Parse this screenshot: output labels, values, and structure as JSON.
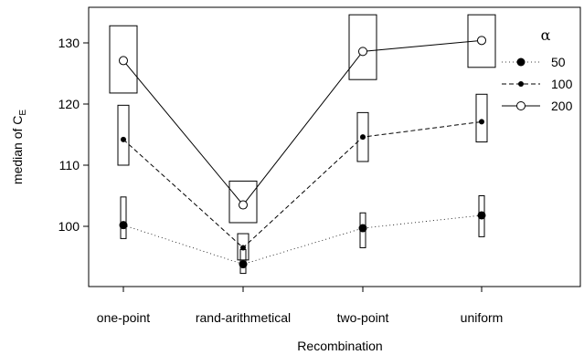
{
  "chart_data": {
    "type": "line",
    "xlabel": "Recombination",
    "ylabel_main": "median of C",
    "ylabel_subscript": "E",
    "categories": [
      "one-point",
      "rand-arithmetical",
      "two-point",
      "uniform"
    ],
    "ylim": [
      90,
      135
    ],
    "yticks": [
      100,
      110,
      120,
      130
    ],
    "legend_title": "α",
    "legend_position": "top-right",
    "series": [
      {
        "name": "50",
        "line_style": "dotted",
        "marker": "filled-large",
        "values": [
          100.2,
          93.8,
          99.7,
          101.8
        ],
        "ci_low": [
          98.0,
          92.3,
          96.5,
          98.3
        ],
        "ci_high": [
          104.8,
          96.2,
          102.2,
          105.0
        ]
      },
      {
        "name": "100",
        "line_style": "dashed",
        "marker": "filled-small",
        "values": [
          114.2,
          96.5,
          114.6,
          117.1
        ],
        "ci_low": [
          110.0,
          94.5,
          110.6,
          113.8
        ],
        "ci_high": [
          119.8,
          98.8,
          118.6,
          121.6
        ]
      },
      {
        "name": "200",
        "line_style": "solid",
        "marker": "open",
        "values": [
          127.1,
          103.5,
          128.6,
          130.4
        ],
        "ci_low": [
          121.8,
          100.6,
          124.0,
          126.0
        ],
        "ci_high": [
          132.8,
          107.4,
          134.6,
          134.6
        ]
      }
    ]
  }
}
